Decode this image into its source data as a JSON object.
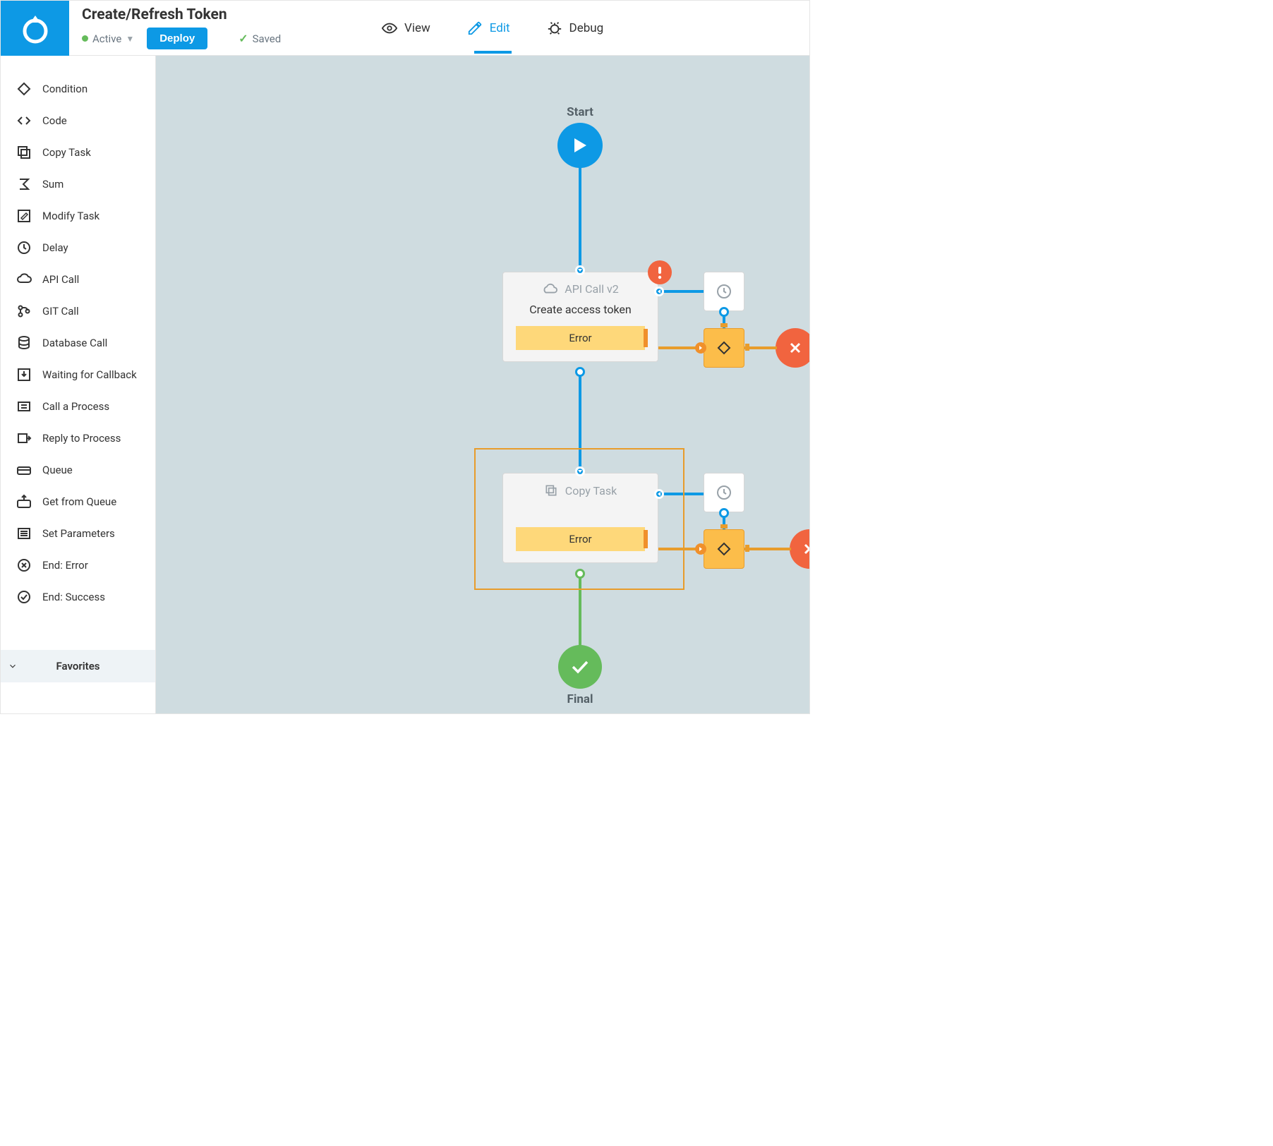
{
  "header": {
    "title": "Create/Refresh Token",
    "status_label": "Active",
    "deploy_label": "Deploy",
    "saved_label": "Saved"
  },
  "tabs": {
    "view": "View",
    "edit": "Edit",
    "debug": "Debug",
    "active": "edit"
  },
  "sidebar": {
    "items": [
      {
        "label": "Condition",
        "icon": "diamond"
      },
      {
        "label": "Code",
        "icon": "code"
      },
      {
        "label": "Copy Task",
        "icon": "copy"
      },
      {
        "label": "Sum",
        "icon": "sigma"
      },
      {
        "label": "Modify Task",
        "icon": "modify"
      },
      {
        "label": "Delay",
        "icon": "clock"
      },
      {
        "label": "API Call",
        "icon": "cloud"
      },
      {
        "label": "GIT Call",
        "icon": "git"
      },
      {
        "label": "Database Call",
        "icon": "database"
      },
      {
        "label": "Waiting for Callback",
        "icon": "download"
      },
      {
        "label": "Call a Process",
        "icon": "process"
      },
      {
        "label": "Reply to Process",
        "icon": "reply"
      },
      {
        "label": "Queue",
        "icon": "queue"
      },
      {
        "label": "Get from Queue",
        "icon": "queue-up"
      },
      {
        "label": "Set Parameters",
        "icon": "params"
      },
      {
        "label": "End: Error",
        "icon": "end-x"
      },
      {
        "label": "End: Success",
        "icon": "end-ok"
      }
    ],
    "favorites_label": "Favorites"
  },
  "flow": {
    "start_label": "Start",
    "final_label": "Final",
    "nodes": [
      {
        "type": "API Call v2",
        "title": "Create access token",
        "error_label": "Error",
        "has_alert": true
      },
      {
        "type": "Copy Task",
        "title": "",
        "error_label": "Error",
        "has_alert": false,
        "selected": true
      }
    ],
    "edges": [
      {
        "from": "start",
        "to": "node0",
        "color": "#0d99e5"
      },
      {
        "from": "node0",
        "to": "node1",
        "color": "#0d99e5"
      },
      {
        "from": "node1",
        "to": "final",
        "color": "#65bb5b"
      },
      {
        "from": "node0.error",
        "to": "cond0",
        "color": "#e89c2b"
      },
      {
        "from": "cond0",
        "to": "err0",
        "color": "#e89c2b"
      },
      {
        "from": "delay0",
        "to": "node0.right",
        "color": "#0d99e5"
      },
      {
        "from": "node1.error",
        "to": "cond1",
        "color": "#e89c2b"
      },
      {
        "from": "cond1",
        "to": "err1",
        "color": "#e89c2b"
      },
      {
        "from": "delay1",
        "to": "node1.right",
        "color": "#0d99e5"
      },
      {
        "from": "cond0",
        "to": "delay0",
        "color": "#0d99e5"
      },
      {
        "from": "cond1",
        "to": "delay1",
        "color": "#0d99e5"
      }
    ],
    "colors": {
      "primary": "#0d99e5",
      "success": "#65bb5b",
      "warning_fill": "#fed87a",
      "warning_stroke": "#e89c2b",
      "orange_node": "#fcbd4a",
      "error": "#f1643f",
      "canvas_bg": "#cfdce0",
      "card_bg": "#f4f4f4",
      "card_border": "#d7d7d7",
      "text_muted": "#98a1a8",
      "text": "#333"
    }
  }
}
